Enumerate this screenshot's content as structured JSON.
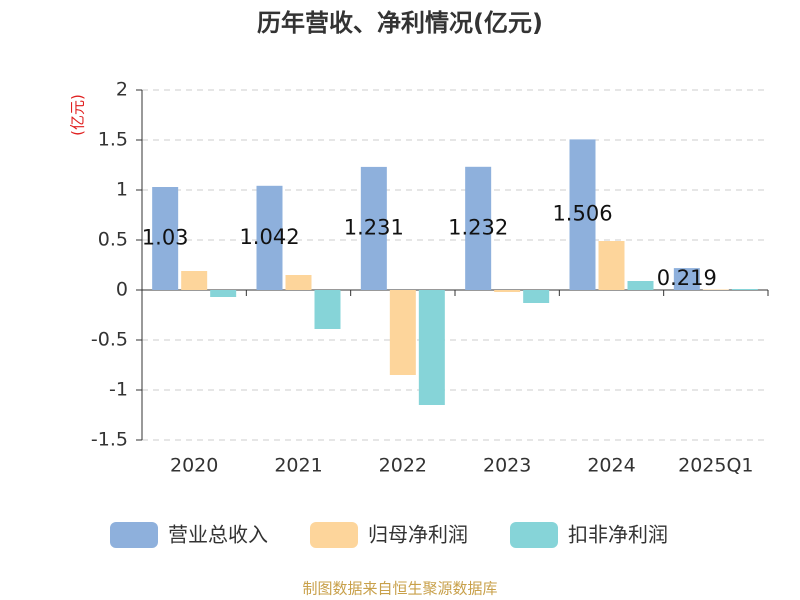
{
  "chart_data": {
    "type": "bar",
    "title": "历年营收、净利情况(亿元)",
    "y_label": "(亿元)",
    "categories": [
      "2020",
      "2021",
      "2022",
      "2023",
      "2024",
      "2025Q1"
    ],
    "series": [
      {
        "name": "营业总收入",
        "color": "#8eb0dc",
        "values": [
          1.03,
          1.042,
          1.231,
          1.232,
          1.506,
          0.219
        ]
      },
      {
        "name": "归母净利润",
        "color": "#fdd59b",
        "values": [
          0.19,
          0.15,
          -0.85,
          -0.02,
          0.49,
          0.005
        ]
      },
      {
        "name": "扣非净利润",
        "color": "#86d4d8",
        "values": [
          -0.07,
          -0.39,
          -1.15,
          -0.13,
          0.09,
          0.01
        ]
      }
    ],
    "ylim": [
      -1.5,
      2
    ],
    "yticks": [
      -1.5,
      -1,
      -0.5,
      0,
      0.5,
      1,
      1.5,
      2
    ],
    "grid": true,
    "source": "制图数据来自恒生聚源数据库"
  }
}
